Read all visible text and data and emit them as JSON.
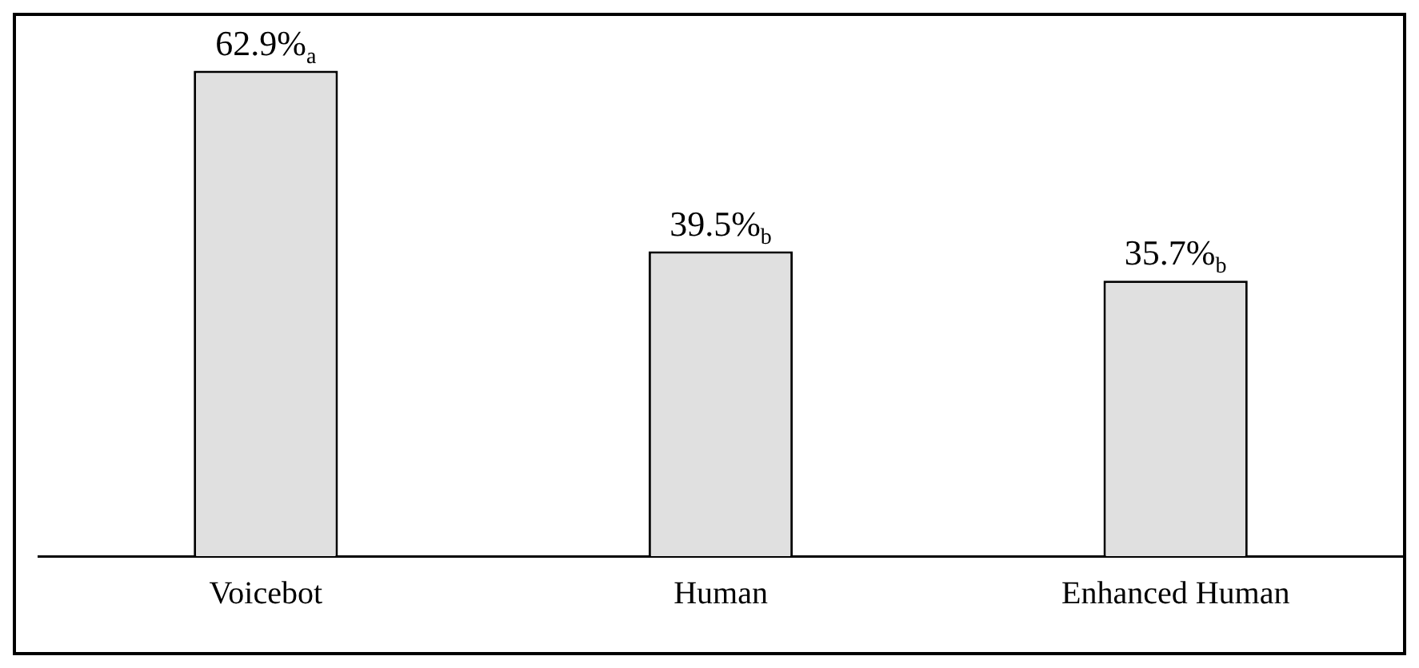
{
  "chart_data": {
    "type": "bar",
    "categories": [
      "Voicebot",
      "Human",
      "Enhanced Human"
    ],
    "values": [
      62.9,
      39.5,
      35.7
    ],
    "color": "#e0e0e0",
    "value_labels": [
      "62.9%$_{a}$",
      "39.5%$_{b}$",
      "35.7%$_{b}$"
    ],
    "ylim": [
      0,
      70
    ],
    "tick_labels": "x",
    "grid": false,
    "legend": false
  }
}
